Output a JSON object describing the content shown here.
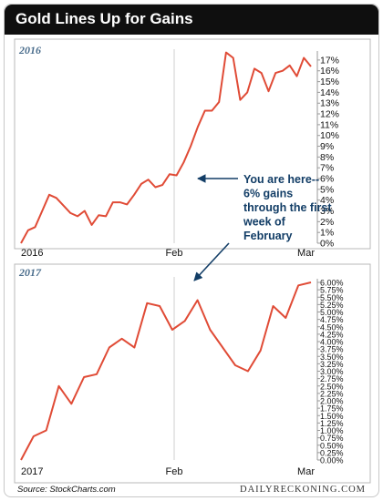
{
  "title": "Gold Lines Up for Gains",
  "annotation": [
    "You are here--",
    "6% gains",
    "through the first",
    "week of",
    "February"
  ],
  "source": "Source: StockCharts.com",
  "brand": "DAILYRECKONING.COM",
  "colors": {
    "line": "#e04b36",
    "header": "#0f0f0f",
    "annotation": "#123d66",
    "year_label": "#4a6d8c"
  },
  "chart_data": [
    {
      "type": "line",
      "title": "2016",
      "x_ticks": [
        "2016",
        "Feb",
        "Mar"
      ],
      "y_ticks": [
        "0%",
        "1%",
        "2%",
        "3%",
        "4%",
        "5%",
        "6%",
        "7%",
        "8%",
        "9%",
        "10%",
        "11%",
        "12%",
        "13%",
        "14%",
        "15%",
        "16%",
        "17%"
      ],
      "ylim": [
        0,
        17.5
      ],
      "grid": "vertical at month boundaries",
      "series": [
        {
          "values": [
            0.0,
            1.2,
            1.5,
            3.0,
            4.5,
            4.2,
            3.5,
            2.8,
            2.5,
            3.0,
            1.7,
            2.6,
            2.5,
            3.8,
            3.8,
            3.6,
            4.5,
            5.5,
            5.9,
            5.2,
            5.4,
            6.4,
            6.3,
            7.5,
            9.0,
            10.8,
            12.3,
            12.3,
            13.1,
            17.7,
            17.2,
            13.3,
            14.0,
            16.2,
            15.8,
            14.1,
            15.8,
            16.0,
            16.5,
            15.5,
            17.2,
            16.4
          ]
        }
      ]
    },
    {
      "type": "line",
      "title": "2017",
      "x_ticks": [
        "2017",
        "Feb",
        "Mar"
      ],
      "y_ticks": [
        "0.00%",
        "0.25%",
        "0.50%",
        "0.75%",
        "1.00%",
        "1.25%",
        "1.50%",
        "1.75%",
        "2.00%",
        "2.25%",
        "2.50%",
        "2.75%",
        "3.00%",
        "3.25%",
        "3.50%",
        "3.75%",
        "4.00%",
        "4.25%",
        "4.50%",
        "4.75%",
        "5.00%",
        "5.25%",
        "5.50%",
        "5.75%",
        "6.00%"
      ],
      "ylim": [
        0,
        6.0
      ],
      "grid": "vertical at month boundaries",
      "series": [
        {
          "values": [
            0.0,
            0.8,
            1.0,
            2.5,
            1.9,
            2.8,
            2.9,
            3.8,
            4.1,
            3.8,
            5.3,
            5.2,
            4.4,
            4.7,
            5.4,
            4.4,
            3.8,
            3.2,
            3.0,
            3.7,
            5.2,
            4.8,
            5.9,
            6.0
          ]
        }
      ]
    }
  ]
}
